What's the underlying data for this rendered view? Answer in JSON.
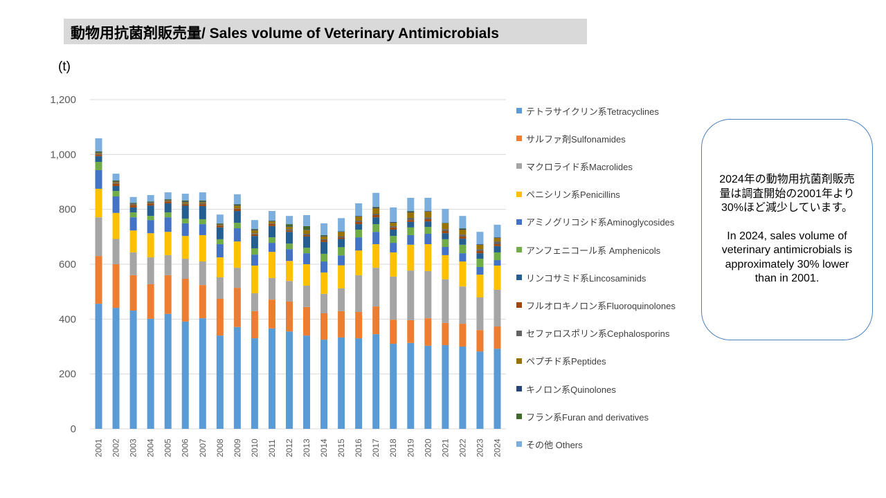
{
  "title": "動物用抗菌剤販売量/ Sales volume of Veterinary Antimicrobials",
  "unit_label": "(t)",
  "callout": {
    "jp": "2024年の動物用抗菌剤販売量は調査開始の2001年より30%ほど減少しています。",
    "en": "In 2024, sales volume of veterinary antimicrobials is approximately 30% lower than in 2001."
  },
  "chart_data": {
    "type": "bar",
    "stacked": true,
    "ylim": [
      0,
      1200
    ],
    "yticks": [
      "0",
      "200",
      "400",
      "600",
      "800",
      "1,000",
      "1,200"
    ],
    "ytick_values": [
      0,
      200,
      400,
      600,
      800,
      1000,
      1200
    ],
    "grid": true,
    "legend_position": "right",
    "categories": [
      "2001",
      "2002",
      "2003",
      "2004",
      "2005",
      "2006",
      "2007",
      "2008",
      "2009",
      "2010",
      "2011",
      "2012",
      "2013",
      "2014",
      "2015",
      "2016",
      "2017",
      "2018",
      "2019",
      "2020",
      "2021",
      "2022",
      "2023",
      "2024"
    ],
    "series": [
      {
        "name": "テトラサイクリン系Tetracyclines",
        "color": "#5B9BD5",
        "values": [
          456,
          441,
          431,
          401,
          419,
          391,
          403,
          340,
          371,
          330,
          366,
          355,
          340,
          325,
          333,
          330,
          345,
          310,
          313,
          303,
          305,
          300,
          282,
          292
        ]
      },
      {
        "name": "サルファ剤Sulfonamides",
        "color": "#ED7D31",
        "values": [
          174,
          159,
          129,
          126,
          141,
          156,
          121,
          134,
          143,
          99,
          105,
          109,
          104,
          96,
          96,
          96,
          101,
          88,
          83,
          100,
          81,
          83,
          78,
          81
        ]
      },
      {
        "name": "マクロライド系Macrolides",
        "color": "#A5A5A5",
        "values": [
          141,
          92,
          83,
          98,
          73,
          73,
          86,
          78,
          73,
          65,
          79,
          75,
          78,
          71,
          83,
          134,
          141,
          157,
          181,
          172,
          159,
          136,
          119,
          134
        ]
      },
      {
        "name": "ペニシリン系Penicillins",
        "color": "#FFC000",
        "values": [
          104,
          95,
          80,
          88,
          85,
          83,
          96,
          73,
          96,
          101,
          95,
          73,
          78,
          78,
          84,
          90,
          86,
          88,
          94,
          98,
          88,
          91,
          83,
          88
        ]
      },
      {
        "name": "アミノグリコシド系Aminoglycosides",
        "color": "#4472C4",
        "values": [
          68,
          60,
          48,
          48,
          53,
          46,
          40,
          48,
          48,
          40,
          33,
          43,
          40,
          40,
          36,
          48,
          45,
          35,
          35,
          38,
          30,
          30,
          28,
          20
        ]
      },
      {
        "name": "アンフェニコール系 Amphenicols",
        "color": "#70AD47",
        "values": [
          30,
          20,
          18,
          15,
          18,
          17,
          18,
          18,
          20,
          23,
          20,
          20,
          20,
          28,
          30,
          28,
          28,
          25,
          28,
          25,
          28,
          31,
          30,
          28
        ]
      },
      {
        "name": "リンコサミド系Lincosaminids",
        "color": "#255E91",
        "values": [
          21,
          18,
          18,
          38,
          33,
          47,
          48,
          43,
          43,
          45,
          41,
          43,
          41,
          43,
          30,
          20,
          25,
          23,
          20,
          20,
          22,
          22,
          20,
          23
        ]
      },
      {
        "name": "フルオロキノロン系Fluoroquinolones",
        "color": "#9E480E",
        "values": [
          6,
          9,
          9,
          7,
          7,
          5,
          7,
          6,
          8,
          6,
          8,
          5,
          5,
          6,
          5,
          8,
          8,
          8,
          7,
          8,
          8,
          8,
          8,
          7
        ]
      },
      {
        "name": "セファロスポリン系Cephalosporins",
        "color": "#636363",
        "values": [
          3,
          3,
          2,
          2,
          2,
          3,
          3,
          2,
          2,
          4,
          2,
          5,
          5,
          4,
          5,
          5,
          5,
          5,
          8,
          7,
          7,
          7,
          7,
          10
        ]
      },
      {
        "name": "ペプチド系Peptides",
        "color": "#997300",
        "values": [
          3,
          3,
          2,
          2,
          2,
          5,
          4,
          3,
          10,
          11,
          7,
          8,
          13,
          10,
          16,
          15,
          20,
          12,
          20,
          21,
          21,
          18,
          16,
          13
        ]
      },
      {
        "name": "キノロン系Quinolones",
        "color": "#264478",
        "values": [
          2,
          2,
          2,
          2,
          2,
          3,
          3,
          2,
          3,
          3,
          2,
          2,
          1,
          2,
          2,
          2,
          3,
          3,
          3,
          2,
          0,
          3,
          2,
          2
        ]
      },
      {
        "name": "フラン系Furan and derivatives",
        "color": "#43682B",
        "values": [
          3,
          3,
          2,
          2,
          2,
          3,
          3,
          2,
          2,
          2,
          1,
          8,
          14,
          3,
          0,
          0,
          2,
          0,
          2,
          0,
          2,
          2,
          0,
          0
        ]
      },
      {
        "name": "その他 Others",
        "color": "#7CAFDD",
        "values": [
          48,
          25,
          21,
          23,
          25,
          25,
          30,
          32,
          36,
          32,
          35,
          30,
          40,
          43,
          48,
          46,
          51,
          53,
          48,
          48,
          51,
          45,
          45,
          46
        ]
      }
    ]
  }
}
